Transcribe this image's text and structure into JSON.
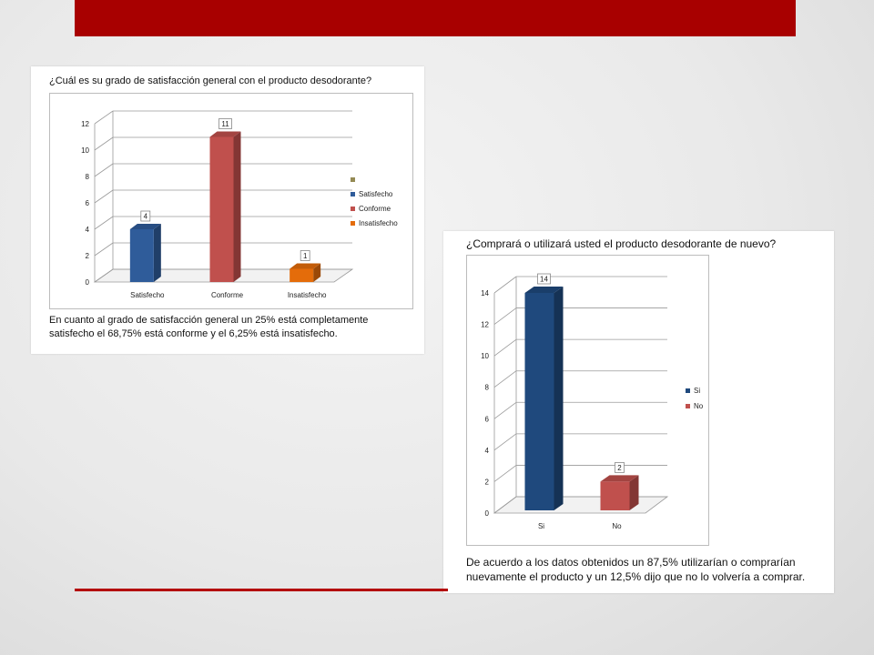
{
  "colors": {
    "header_bar": "#a80000",
    "accent_line": "#b30000",
    "blue": "#2f5c9a",
    "red": "#c0504d",
    "orange": "#e46c0a",
    "olive": "#948a54"
  },
  "slide": {
    "chart1": {
      "question": "¿Cuál es su grado de satisfacción general con el producto desodorante?",
      "caption": "En cuanto al grado de satisfacción general un 25% está completamente satisfecho el 68,75% está conforme y el 6,25% está insatisfecho."
    },
    "chart2": {
      "question": "¿Comprará o utilizará usted el producto desodorante de nuevo?",
      "caption": "De acuerdo a los datos obtenidos un 87,5% utilizarían o comprarían nuevamente el producto y un 12,5% dijo que no lo volvería a comprar."
    }
  },
  "chart_data": [
    {
      "type": "bar",
      "title": "¿Cuál es su grado de satisfacción general con el producto desodorante?",
      "categories": [
        "Satisfecho",
        "Conforme",
        "Insatisfecho"
      ],
      "values": [
        4,
        11,
        1
      ],
      "data_labels": [
        "4",
        "11",
        "1"
      ],
      "bar_colors": [
        "#2f5c9a",
        "#c0504d",
        "#e46c0a"
      ],
      "legend": [
        {
          "name": "",
          "color": "#948a54"
        },
        {
          "name": "Satisfecho",
          "color": "#2f5c9a"
        },
        {
          "name": "Conforme",
          "color": "#c0504d"
        },
        {
          "name": "Insatisfecho",
          "color": "#e46c0a"
        }
      ],
      "legend_position": "right",
      "yticks": [
        "0",
        "2",
        "4",
        "6",
        "8",
        "10",
        "12"
      ],
      "ylim": [
        0,
        12
      ],
      "grid": true,
      "three_d": true
    },
    {
      "type": "bar",
      "title": "¿Comprará o utilizará usted el producto desodorante de nuevo?",
      "categories": [
        "Si",
        "No"
      ],
      "values": [
        14,
        2
      ],
      "data_labels": [
        "14",
        "2"
      ],
      "bar_colors": [
        "#1f497d",
        "#c0504d"
      ],
      "legend": [
        {
          "name": "Si",
          "color": "#1f497d"
        },
        {
          "name": "No",
          "color": "#c0504d"
        }
      ],
      "legend_position": "right",
      "yticks": [
        "0",
        "2",
        "4",
        "6",
        "8",
        "10",
        "12",
        "14"
      ],
      "ylim": [
        0,
        14
      ],
      "grid": true,
      "three_d": true
    }
  ]
}
